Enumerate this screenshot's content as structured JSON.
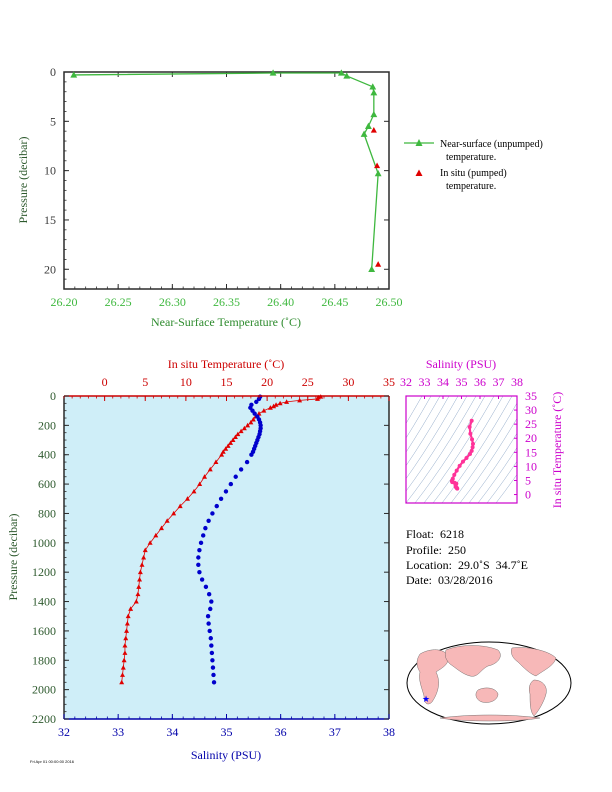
{
  "chart_data": [
    {
      "type": "line",
      "xlabel": "Near-Surface Temperature (˚C)",
      "ylabel": "Pressure (decibar)",
      "xlim": [
        26.2,
        26.5
      ],
      "ylim": [
        0,
        22
      ],
      "y_inverted": true,
      "xticks": [
        "26.20",
        "26.25",
        "26.30",
        "26.35",
        "26.40",
        "26.45",
        "26.50"
      ],
      "yticks": [
        "0",
        "5",
        "10",
        "15",
        "20"
      ],
      "legend_position": "right",
      "colors": {
        "near_surface": "#3fb83f",
        "in_situ": "#e00000",
        "axis_label": "#2e8b2e",
        "tick": "#3fb83f"
      },
      "series": [
        {
          "name": "Near-surface (unpumped) temperature.",
          "marker": "triangle",
          "x": [
            26.209,
            26.393,
            26.456,
            26.461,
            26.485,
            26.486,
            26.486,
            26.481,
            26.477,
            26.49,
            26.484
          ],
          "y": [
            0.3,
            0.1,
            0.1,
            0.4,
            1.5,
            2.1,
            4.3,
            5.5,
            6.3,
            10.3,
            20.0
          ]
        },
        {
          "name": "In situ (pumped) temperature.",
          "marker": "triangle",
          "x": [
            26.486,
            26.489,
            26.49
          ],
          "y": [
            5.9,
            9.5,
            19.5
          ]
        }
      ]
    },
    {
      "type": "scatter",
      "title": "In situ Temperature (˚C)",
      "xlabel": "Salinity (PSU)",
      "ylabel": "Pressure (decibar)",
      "xlim_salinity": [
        32,
        38
      ],
      "xlim_temperature": [
        -5,
        35
      ],
      "ylim": [
        0,
        2200
      ],
      "y_inverted": true,
      "xticks_salinity": [
        "32",
        "33",
        "34",
        "35",
        "36",
        "37",
        "38"
      ],
      "xticks_temperature": [
        "0",
        "5",
        "10",
        "15",
        "20",
        "25",
        "30",
        "35"
      ],
      "yticks": [
        "0",
        "200",
        "400",
        "600",
        "800",
        "1000",
        "1200",
        "1400",
        "1600",
        "1800",
        "2000",
        "2200"
      ],
      "colors": {
        "temperature": "#e00000",
        "salinity": "#0000cc",
        "background": "#cfeef8"
      },
      "temperature": {
        "pressure": [
          5,
          10,
          20,
          30,
          40,
          50,
          60,
          70,
          80,
          100,
          120,
          140,
          160,
          180,
          200,
          220,
          240,
          260,
          280,
          300,
          320,
          340,
          360,
          380,
          400,
          450,
          500,
          550,
          600,
          650,
          700,
          750,
          800,
          850,
          900,
          950,
          1000,
          1050,
          1100,
          1150,
          1200,
          1250,
          1300,
          1350,
          1400,
          1450,
          1500,
          1550,
          1600,
          1650,
          1700,
          1750,
          1800,
          1850,
          1900,
          1950
        ],
        "values": [
          26.6,
          26.3,
          26.2,
          24.0,
          22.4,
          21.6,
          21.1,
          20.8,
          20.4,
          19.6,
          19.0,
          18.6,
          18.3,
          18.0,
          17.6,
          17.2,
          16.8,
          16.4,
          16.1,
          15.8,
          15.5,
          15.2,
          14.9,
          14.6,
          14.4,
          13.7,
          13.0,
          12.3,
          11.7,
          11.0,
          10.2,
          9.3,
          8.5,
          7.7,
          7.0,
          6.3,
          5.6,
          5.0,
          4.8,
          4.6,
          4.4,
          4.3,
          4.2,
          4.1,
          3.9,
          3.2,
          2.9,
          2.8,
          2.7,
          2.6,
          2.5,
          2.5,
          2.4,
          2.3,
          2.2,
          2.1
        ]
      },
      "salinity": {
        "pressure": [
          5,
          20,
          40,
          60,
          80,
          100,
          120,
          140,
          160,
          180,
          200,
          220,
          240,
          260,
          280,
          300,
          320,
          340,
          360,
          380,
          400,
          450,
          500,
          550,
          600,
          650,
          700,
          750,
          800,
          850,
          900,
          950,
          1000,
          1050,
          1100,
          1150,
          1200,
          1250,
          1300,
          1350,
          1400,
          1450,
          1500,
          1550,
          1600,
          1650,
          1700,
          1750,
          1800,
          1850,
          1900,
          1950
        ],
        "values": [
          35.62,
          35.6,
          35.55,
          35.46,
          35.44,
          35.48,
          35.52,
          35.57,
          35.6,
          35.62,
          35.63,
          35.63,
          35.62,
          35.61,
          35.59,
          35.57,
          35.55,
          35.53,
          35.51,
          35.49,
          35.46,
          35.38,
          35.27,
          35.17,
          35.08,
          34.99,
          34.9,
          34.82,
          34.74,
          34.67,
          34.61,
          34.57,
          34.53,
          34.5,
          34.48,
          34.48,
          34.5,
          34.55,
          34.62,
          34.68,
          34.72,
          34.7,
          34.66,
          34.67,
          34.69,
          34.71,
          34.72,
          34.73,
          34.74,
          34.75,
          34.76,
          34.77
        ]
      }
    },
    {
      "type": "scatter",
      "title": "Salinity (PSU)",
      "ylabel": "In situ Temperature (˚C)",
      "xlim": [
        32,
        38
      ],
      "ylim": [
        -3,
        35
      ],
      "xticks": [
        "32",
        "33",
        "34",
        "35",
        "36",
        "37",
        "38"
      ],
      "yticks": [
        "0",
        "5",
        "10",
        "15",
        "20",
        "25",
        "30",
        "35"
      ],
      "colors": {
        "axis": "#cc00cc",
        "points": "#ff3399"
      },
      "salinity": [
        34.77,
        34.75,
        34.73,
        34.71,
        34.69,
        34.68,
        34.72,
        34.62,
        34.5,
        34.48,
        34.53,
        34.61,
        34.74,
        34.9,
        35.08,
        35.27,
        35.46,
        35.55,
        35.6,
        35.62,
        35.57,
        35.48,
        35.44,
        35.55
      ],
      "temperature": [
        2.1,
        2.3,
        2.5,
        2.6,
        2.8,
        3.2,
        3.9,
        4.2,
        4.4,
        4.8,
        5.6,
        7.0,
        8.5,
        10.2,
        11.7,
        13.0,
        14.4,
        15.5,
        16.8,
        18.0,
        19.6,
        21.6,
        24.0,
        26.2
      ]
    }
  ],
  "info": {
    "float": "Float:  6218",
    "profile": "Profile:  250",
    "location": "Location:  29.0˚S  34.7˚E",
    "date": "Date:  03/28/2016"
  },
  "map": {
    "land_color": "#f7b8b8",
    "ocean_color": "#ffffff",
    "marker_color": "#0000ff",
    "marker_lat": -29.0,
    "marker_lon": 34.7
  },
  "footer": "Fri Apr 01 00:00:00 2016"
}
